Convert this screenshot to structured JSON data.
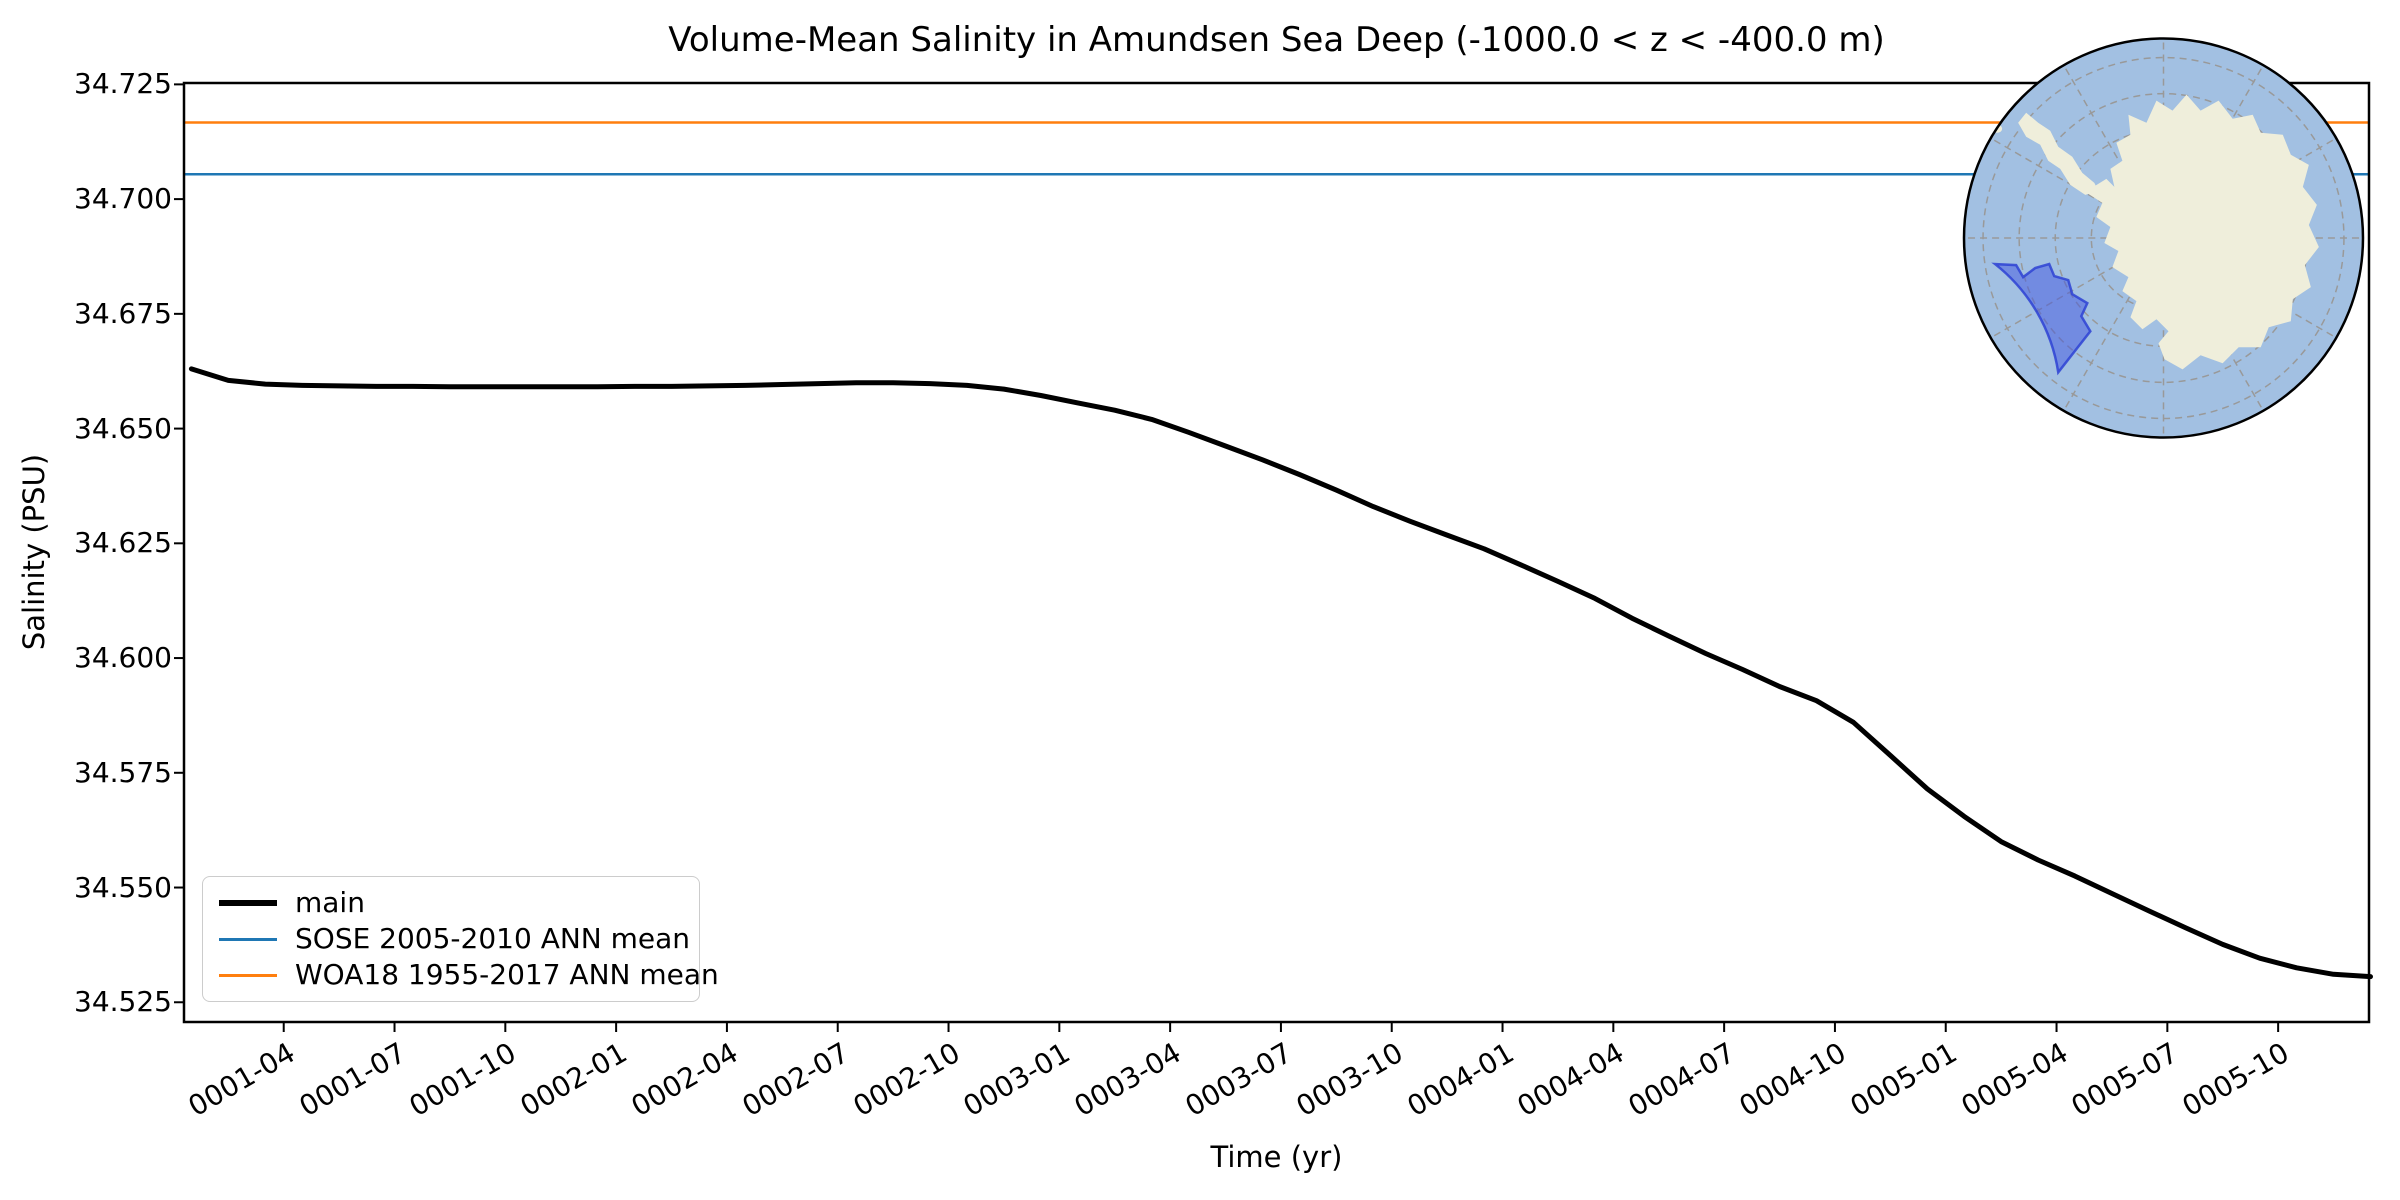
{
  "figure": {
    "background": "#ffffff"
  },
  "chart_data": {
    "type": "line",
    "title": "Volume-Mean Salinity in Amundsen Sea Deep (-1000.0 < z < -400.0 m)",
    "xlabel": "Time (yr)",
    "ylabel": "Salinity (PSU)",
    "x_unit": "months since year 0001-01",
    "xlim_months": [
      0.3,
      59.46
    ],
    "ylim": [
      34.5207,
      34.7253
    ],
    "grid": false,
    "x_ticks": [
      {
        "label": "0001-04",
        "month": 3
      },
      {
        "label": "0001-07",
        "month": 6
      },
      {
        "label": "0001-10",
        "month": 9
      },
      {
        "label": "0002-01",
        "month": 12
      },
      {
        "label": "0002-04",
        "month": 15
      },
      {
        "label": "0002-07",
        "month": 18
      },
      {
        "label": "0002-10",
        "month": 21
      },
      {
        "label": "0003-01",
        "month": 24
      },
      {
        "label": "0003-04",
        "month": 27
      },
      {
        "label": "0003-07",
        "month": 30
      },
      {
        "label": "0003-10",
        "month": 33
      },
      {
        "label": "0004-01",
        "month": 36
      },
      {
        "label": "0004-04",
        "month": 39
      },
      {
        "label": "0004-07",
        "month": 42
      },
      {
        "label": "0004-10",
        "month": 45
      },
      {
        "label": "0005-01",
        "month": 48
      },
      {
        "label": "0005-04",
        "month": 51
      },
      {
        "label": "0005-07",
        "month": 54
      },
      {
        "label": "0005-10",
        "month": 57
      }
    ],
    "y_ticks": [
      {
        "label": "34.525",
        "value": 34.525
      },
      {
        "label": "34.550",
        "value": 34.55
      },
      {
        "label": "34.575",
        "value": 34.575
      },
      {
        "label": "34.600",
        "value": 34.6
      },
      {
        "label": "34.625",
        "value": 34.625
      },
      {
        "label": "34.650",
        "value": 34.65
      },
      {
        "label": "34.675",
        "value": 34.675
      },
      {
        "label": "34.700",
        "value": 34.7
      },
      {
        "label": "34.725",
        "value": 34.725
      }
    ],
    "series": [
      {
        "name": "main",
        "color": "#000000",
        "line_width": 5,
        "x_start_month": 0.5,
        "x_step_months": 1,
        "values": [
          34.663,
          34.6605,
          34.6597,
          34.6594,
          34.6593,
          34.6592,
          34.6592,
          34.6591,
          34.6591,
          34.6591,
          34.6591,
          34.6591,
          34.6592,
          34.6592,
          34.6593,
          34.6594,
          34.6596,
          34.6598,
          34.66,
          34.66,
          34.6598,
          34.6594,
          34.6586,
          34.6572,
          34.6556,
          34.654,
          34.652,
          34.6492,
          34.6462,
          34.6432,
          34.64,
          34.6366,
          34.633,
          34.6298,
          34.6268,
          34.6238,
          34.6203,
          34.6167,
          34.613,
          34.6087,
          34.6048,
          34.601,
          34.5975,
          34.5938,
          34.5907,
          34.586,
          34.5788,
          34.5715,
          34.5655,
          34.56,
          34.556,
          34.5525,
          34.5487,
          34.5449,
          34.5412,
          34.5376,
          34.5346,
          34.5325,
          34.5311,
          34.5306
        ]
      }
    ],
    "hlines": [
      {
        "name": "SOSE 2005-2010 ANN mean",
        "value": 34.7054,
        "color": "#1f77b4",
        "line_width": 2.5
      },
      {
        "name": "WOA18 1955-2017 ANN mean",
        "value": 34.7167,
        "color": "#ff7f0e",
        "line_width": 2.5
      }
    ],
    "legend": {
      "position": "lower left",
      "items": [
        {
          "label": "main",
          "color": "#000000",
          "line_width": 6
        },
        {
          "label": "SOSE 2005-2010 ANN mean",
          "color": "#1f77b4",
          "line_width": 3
        },
        {
          "label": "WOA18 1955-2017 ANN mean",
          "color": "#ff7f0e",
          "line_width": 3
        }
      ]
    }
  },
  "inset_map": {
    "description": "South polar stereographic map of Antarctica with Amundsen Sea sector highlighted",
    "ocean_color": "#a2c0e2",
    "land_color": "#efeedb",
    "highlight_fill": "#4156df",
    "highlight_stroke": "#2e42d4",
    "graticule_color": "#999999",
    "border_color": "#000000"
  }
}
